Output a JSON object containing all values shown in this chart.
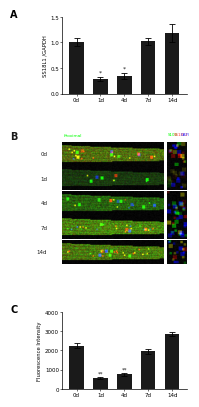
{
  "panel_A": {
    "categories": [
      "0d",
      "1d",
      "4d",
      "7d",
      "14d"
    ],
    "values": [
      1.0,
      0.28,
      0.35,
      1.02,
      1.18
    ],
    "errors": [
      0.08,
      0.04,
      0.06,
      0.07,
      0.18
    ],
    "ylabel": "SS18L1 /GAPDH",
    "ylim": [
      0,
      1.5
    ],
    "yticks": [
      0.0,
      0.5,
      1.0,
      1.5
    ],
    "bar_color": "#1a1a1a",
    "significance": [
      null,
      "*",
      "*",
      null,
      null
    ]
  },
  "panel_B_rows": [
    "0d",
    "1d",
    "4d",
    "7d",
    "14d"
  ],
  "panel_C": {
    "categories": [
      "0d",
      "1d",
      "4d",
      "7d",
      "14d"
    ],
    "values": [
      2250,
      550,
      750,
      1950,
      2850
    ],
    "errors": [
      120,
      60,
      90,
      130,
      100
    ],
    "ylabel": "Fluorescence Intensity",
    "ylim": [
      0,
      4000
    ],
    "yticks": [
      0,
      1000,
      2000,
      3000,
      4000
    ],
    "bar_color": "#1a1a1a",
    "significance": [
      null,
      "**",
      "**",
      null,
      null
    ]
  },
  "background_color": "#ffffff",
  "text_color": "#1a1a1a"
}
